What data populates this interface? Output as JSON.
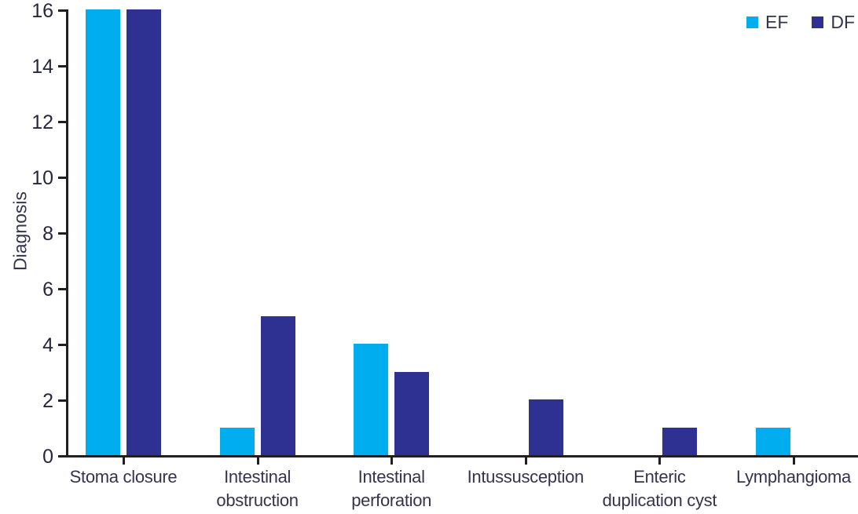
{
  "chart_data": {
    "type": "bar",
    "title": "",
    "xlabel": "",
    "ylabel": "Diagnosis",
    "categories": [
      "Stoma closure",
      "Intestinal\nobstruction",
      "Intestinal\nperforation",
      "Intussusception",
      "Enteric\nduplication cyst",
      "Lymphangioma"
    ],
    "series": [
      {
        "name": "EF",
        "color": "#00AEEF",
        "values": [
          16,
          1,
          4,
          0,
          0,
          1
        ]
      },
      {
        "name": "DF",
        "color": "#2E3192",
        "values": [
          16,
          5,
          3,
          2,
          1,
          0
        ]
      }
    ],
    "ylim": [
      0,
      16
    ],
    "yticks": [
      0,
      2,
      4,
      6,
      8,
      10,
      12,
      14,
      16
    ],
    "grid": false,
    "legend_position": "top-right"
  },
  "colors": {
    "ef_bar": "#00AEEF",
    "df_bar": "#2E3192",
    "axis": "#231F20",
    "tick_label": "#26263C",
    "category_label": "#34344E"
  }
}
